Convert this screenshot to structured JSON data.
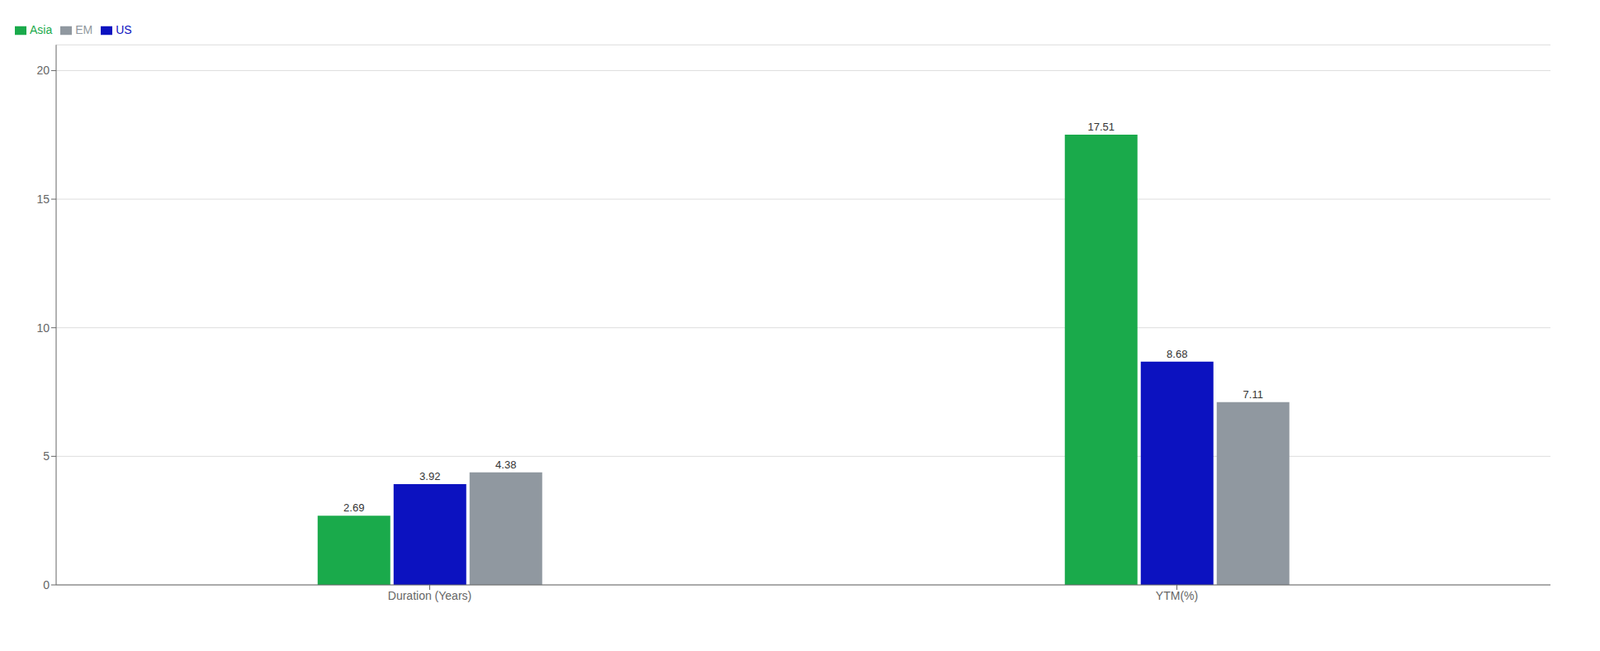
{
  "chart_data": {
    "type": "bar",
    "categories": [
      "Duration (Years)",
      "YTM(%)"
    ],
    "series": [
      {
        "name": "Asia",
        "color": "#1aaa4b",
        "values": [
          2.69,
          17.51
        ]
      },
      {
        "name": "US",
        "color": "#0c12c0",
        "values": [
          3.92,
          8.68
        ]
      },
      {
        "name": "EM",
        "color": "#9098a0",
        "values": [
          4.38,
          7.11
        ]
      }
    ],
    "ylim": [
      0,
      21
    ],
    "yticks": [
      0,
      5,
      10,
      15,
      20
    ],
    "grid": true,
    "legend": "upper left",
    "data_labels": true
  }
}
